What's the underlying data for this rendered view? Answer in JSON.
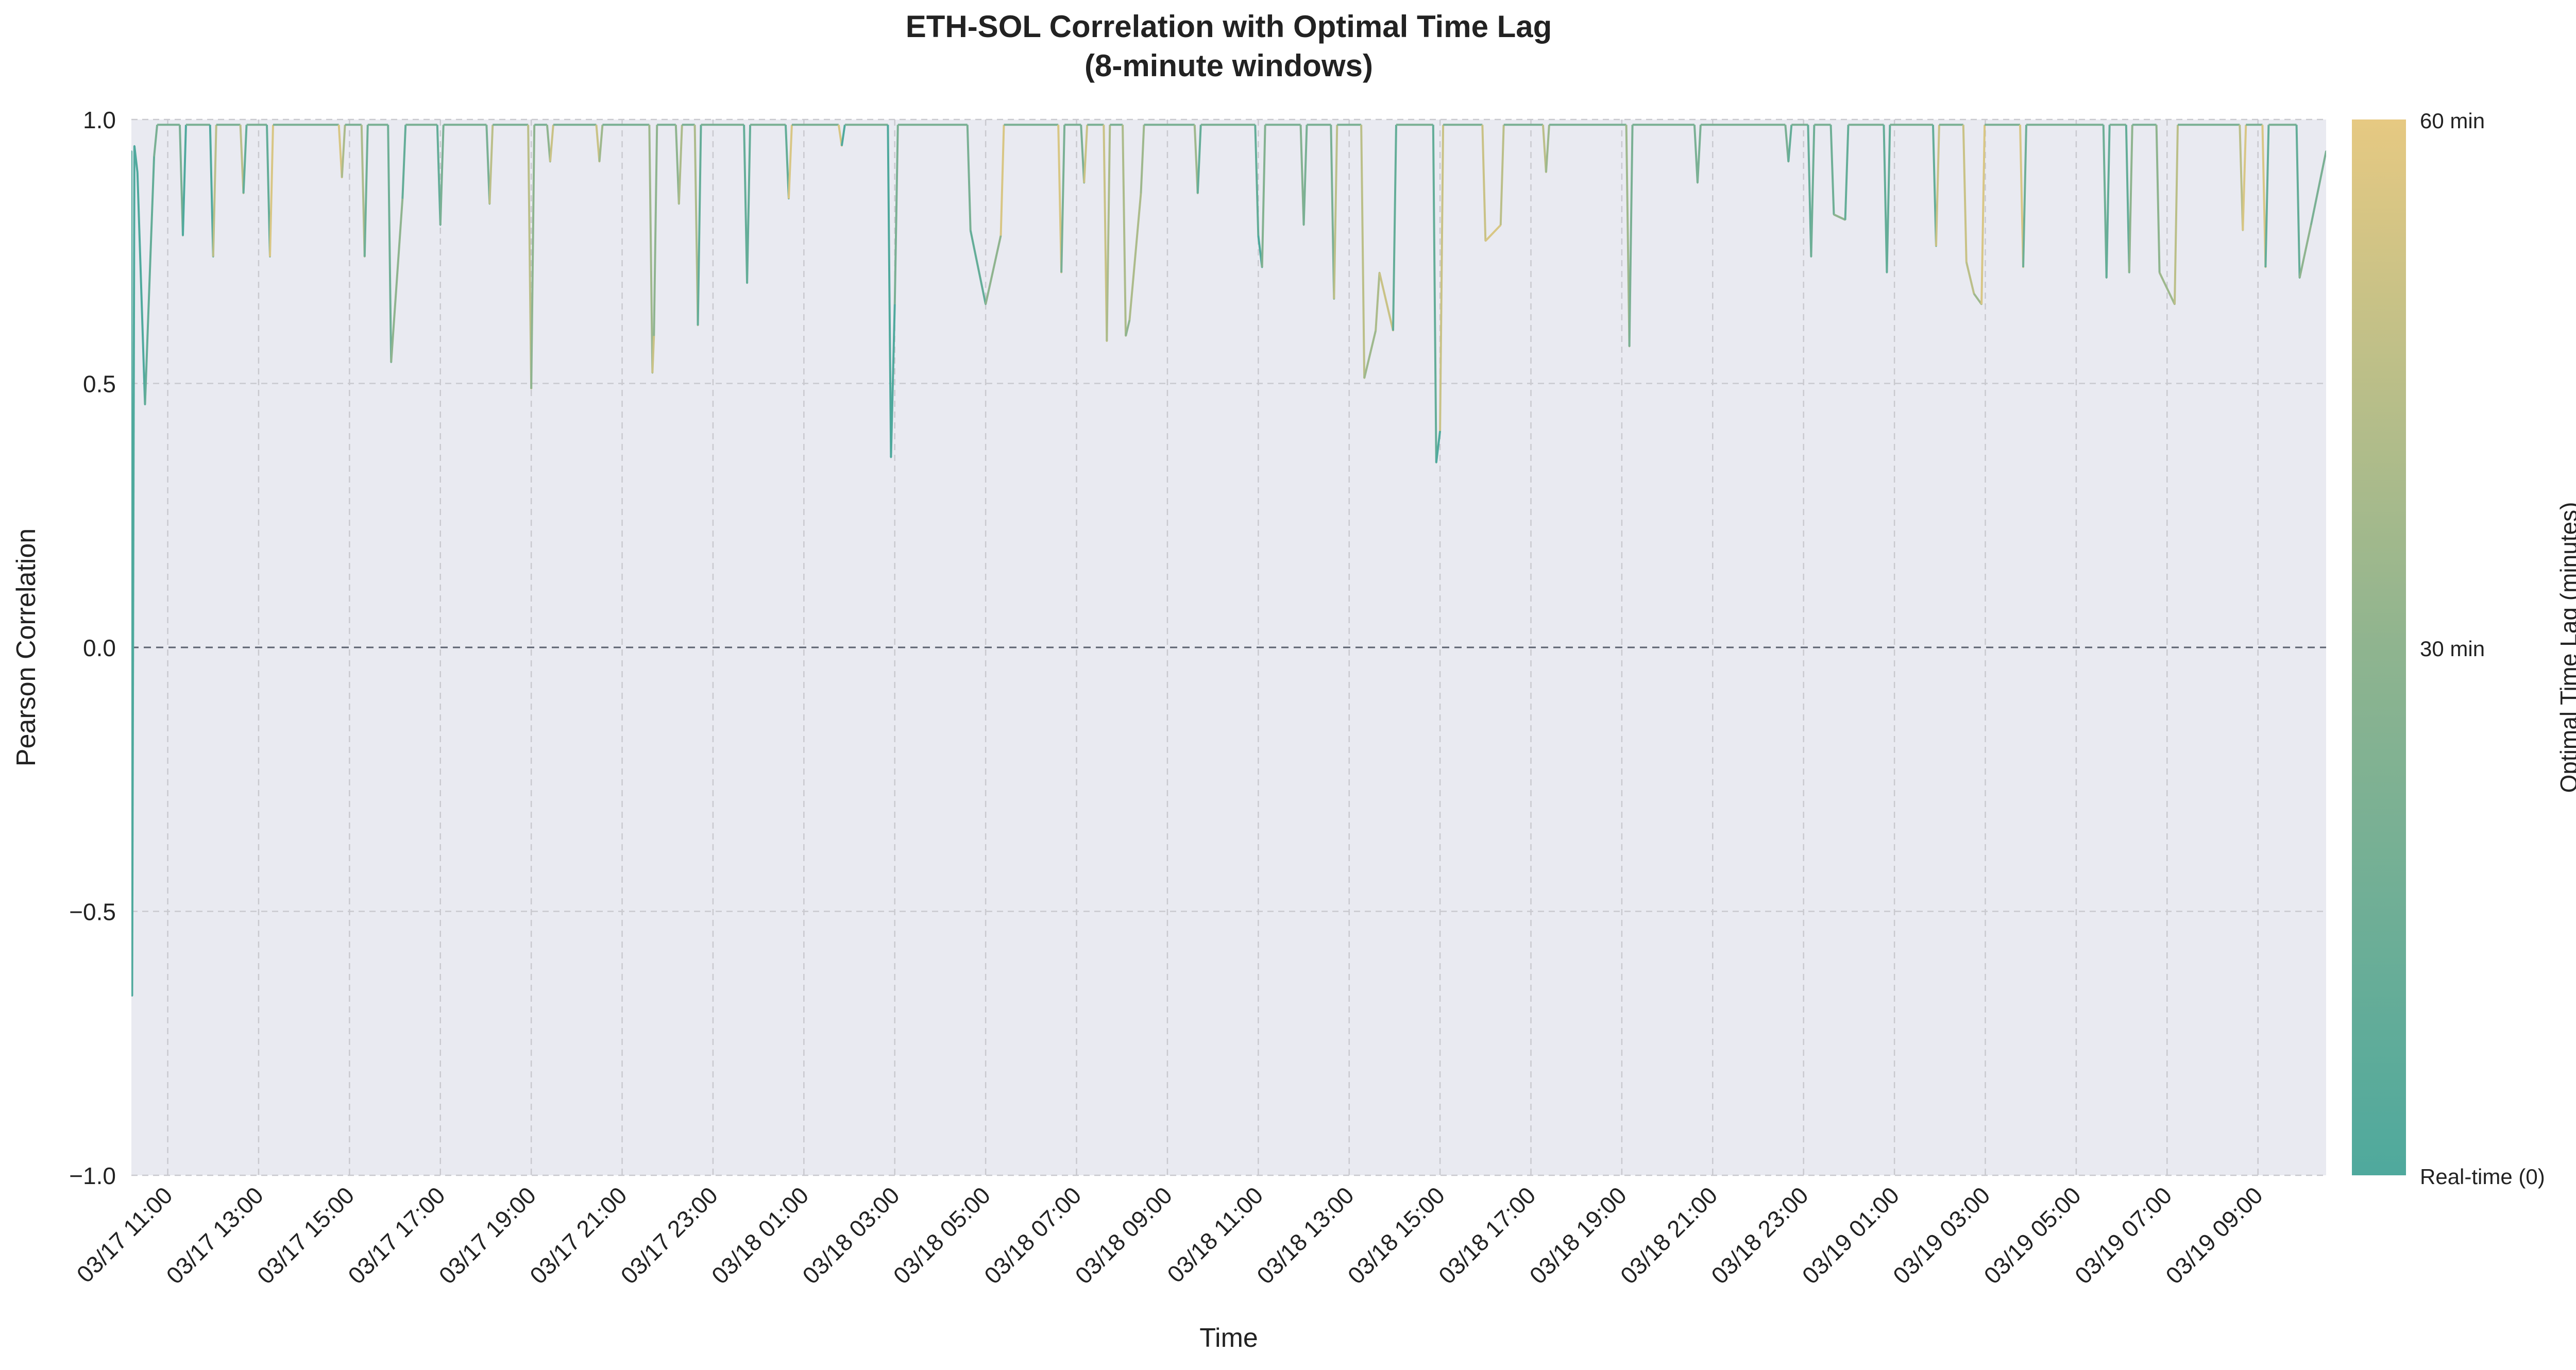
{
  "chart_data": {
    "type": "line",
    "title": "ETH-SOL Correlation with Optimal Time Lag",
    "subtitle": "(8-minute windows)",
    "xlabel": "Time",
    "ylabel": "Pearson Correlation",
    "ylim": [
      -1.0,
      1.0
    ],
    "yticks": [
      -1.0,
      -0.5,
      0.0,
      0.5,
      1.0
    ],
    "ytick_labels": [
      "−1.0",
      "−0.5",
      "0.0",
      "0.5",
      "1.0"
    ],
    "x_range": [
      "03/17 10:12",
      "03/19 10:30"
    ],
    "xticks": [
      "03/17 11:00",
      "03/17 13:00",
      "03/17 15:00",
      "03/17 17:00",
      "03/17 19:00",
      "03/17 21:00",
      "03/17 23:00",
      "03/18 01:00",
      "03/18 03:00",
      "03/18 05:00",
      "03/18 07:00",
      "03/18 09:00",
      "03/18 11:00",
      "03/18 13:00",
      "03/18 15:00",
      "03/18 17:00",
      "03/18 19:00",
      "03/18 21:00",
      "03/18 23:00",
      "03/19 01:00",
      "03/19 03:00",
      "03/19 05:00",
      "03/19 07:00",
      "03/19 09:00"
    ],
    "reference_line_y": 0.0,
    "grid": true,
    "colorbar": {
      "label": "Optimal Time Lag (minutes)",
      "range": [
        0,
        60
      ],
      "tick_labels": [
        "Real-time (0)",
        "30 min",
        "60 min"
      ],
      "color_low": "#4fa99d",
      "color_mid": "#8fb48f",
      "color_high": "#e6c982"
    },
    "series": [
      {
        "color_by": "Optimal Time Lag (minutes)",
        "base_value": 0.99,
        "points": [
          {
            "x": "03/17 10:12",
            "y": 0.94,
            "lag": 0
          },
          {
            "x": "03/17 10:13",
            "y": -0.66,
            "lag": 0
          },
          {
            "x": "03/17 10:16",
            "y": 0.95,
            "lag": 0
          },
          {
            "x": "03/17 10:20",
            "y": 0.9,
            "lag": 0
          },
          {
            "x": "03/17 10:30",
            "y": 0.46,
            "lag": 0
          },
          {
            "x": "03/17 10:42",
            "y": 0.93,
            "lag": 10
          },
          {
            "x": "03/17 11:20",
            "y": 0.78,
            "lag": 20
          },
          {
            "x": "03/17 12:00",
            "y": 0.74,
            "lag": 0
          },
          {
            "x": "03/17 12:40",
            "y": 0.86,
            "lag": 45
          },
          {
            "x": "03/17 13:15",
            "y": 0.74,
            "lag": 10
          },
          {
            "x": "03/17 14:50",
            "y": 0.89,
            "lag": 55
          },
          {
            "x": "03/17 15:20",
            "y": 0.74,
            "lag": 40
          },
          {
            "x": "03/17 15:55",
            "y": 0.54,
            "lag": 15
          },
          {
            "x": "03/17 16:10",
            "y": 0.85,
            "lag": 30
          },
          {
            "x": "03/17 17:00",
            "y": 0.8,
            "lag": 10
          },
          {
            "x": "03/17 18:05",
            "y": 0.84,
            "lag": 20
          },
          {
            "x": "03/17 19:00",
            "y": 0.49,
            "lag": 45
          },
          {
            "x": "03/17 19:25",
            "y": 0.92,
            "lag": 30
          },
          {
            "x": "03/17 20:30",
            "y": 0.92,
            "lag": 50
          },
          {
            "x": "03/17 21:40",
            "y": 0.52,
            "lag": 35
          },
          {
            "x": "03/17 21:42",
            "y": 0.59,
            "lag": 50
          },
          {
            "x": "03/17 22:15",
            "y": 0.84,
            "lag": 30
          },
          {
            "x": "03/17 22:40",
            "y": 0.61,
            "lag": 40
          },
          {
            "x": "03/17 23:45",
            "y": 0.69,
            "lag": 10
          },
          {
            "x": "03/18 00:40",
            "y": 0.85,
            "lag": 10
          },
          {
            "x": "03/18 01:50",
            "y": 0.95,
            "lag": 55
          },
          {
            "x": "03/18 02:55",
            "y": 0.36,
            "lag": 0
          },
          {
            "x": "03/18 03:00",
            "y": 0.65,
            "lag": 0
          },
          {
            "x": "03/18 04:40",
            "y": 0.79,
            "lag": 20
          },
          {
            "x": "03/18 05:00",
            "y": 0.65,
            "lag": 10
          },
          {
            "x": "03/18 05:20",
            "y": 0.78,
            "lag": 30
          },
          {
            "x": "03/18 06:40",
            "y": 0.71,
            "lag": 55
          },
          {
            "x": "03/18 07:10",
            "y": 0.88,
            "lag": 20
          },
          {
            "x": "03/18 07:40",
            "y": 0.58,
            "lag": 50
          },
          {
            "x": "03/18 08:05",
            "y": 0.59,
            "lag": 40
          },
          {
            "x": "03/18 08:10",
            "y": 0.62,
            "lag": 30
          },
          {
            "x": "03/18 08:25",
            "y": 0.86,
            "lag": 40
          },
          {
            "x": "03/18 09:40",
            "y": 0.86,
            "lag": 35
          },
          {
            "x": "03/18 11:00",
            "y": 0.78,
            "lag": 10
          },
          {
            "x": "03/18 11:05",
            "y": 0.72,
            "lag": 0
          },
          {
            "x": "03/18 12:00",
            "y": 0.8,
            "lag": 25
          },
          {
            "x": "03/18 12:40",
            "y": 0.66,
            "lag": 20
          },
          {
            "x": "03/18 13:20",
            "y": 0.51,
            "lag": 45
          },
          {
            "x": "03/18 13:35",
            "y": 0.6,
            "lag": 35
          },
          {
            "x": "03/18 13:40",
            "y": 0.71,
            "lag": 40
          },
          {
            "x": "03/18 13:58",
            "y": 0.6,
            "lag": 50
          },
          {
            "x": "03/18 14:55",
            "y": 0.35,
            "lag": 10
          },
          {
            "x": "03/18 15:00",
            "y": 0.41,
            "lag": 0
          },
          {
            "x": "03/18 16:00",
            "y": 0.77,
            "lag": 50
          },
          {
            "x": "03/18 16:20",
            "y": 0.8,
            "lag": 55
          },
          {
            "x": "03/18 17:20",
            "y": 0.9,
            "lag": 45
          },
          {
            "x": "03/18 19:10",
            "y": 0.57,
            "lag": 35
          },
          {
            "x": "03/18 20:40",
            "y": 0.88,
            "lag": 20
          },
          {
            "x": "03/18 22:40",
            "y": 0.92,
            "lag": 20
          },
          {
            "x": "03/18 23:10",
            "y": 0.74,
            "lag": 10
          },
          {
            "x": "03/18 23:40",
            "y": 0.82,
            "lag": 15
          },
          {
            "x": "03/18 23:55",
            "y": 0.81,
            "lag": 30
          },
          {
            "x": "03/19 00:50",
            "y": 0.71,
            "lag": 10
          },
          {
            "x": "03/19 01:55",
            "y": 0.76,
            "lag": 10
          },
          {
            "x": "03/19 02:35",
            "y": 0.73,
            "lag": 50
          },
          {
            "x": "03/19 02:45",
            "y": 0.67,
            "lag": 45
          },
          {
            "x": "03/19 02:55",
            "y": 0.65,
            "lag": 35
          },
          {
            "x": "03/19 03:50",
            "y": 0.72,
            "lag": 55
          },
          {
            "x": "03/19 05:40",
            "y": 0.7,
            "lag": 15
          },
          {
            "x": "03/19 06:10",
            "y": 0.71,
            "lag": 10
          },
          {
            "x": "03/19 06:50",
            "y": 0.71,
            "lag": 30
          },
          {
            "x": "03/19 07:10",
            "y": 0.65,
            "lag": 35
          },
          {
            "x": "03/19 08:40",
            "y": 0.79,
            "lag": 45
          },
          {
            "x": "03/19 09:10",
            "y": 0.72,
            "lag": 55
          },
          {
            "x": "03/19 09:55",
            "y": 0.7,
            "lag": 10
          },
          {
            "x": "03/19 10:10",
            "y": 0.8,
            "lag": 30
          },
          {
            "x": "03/19 10:30",
            "y": 0.94,
            "lag": 20
          }
        ]
      }
    ]
  }
}
